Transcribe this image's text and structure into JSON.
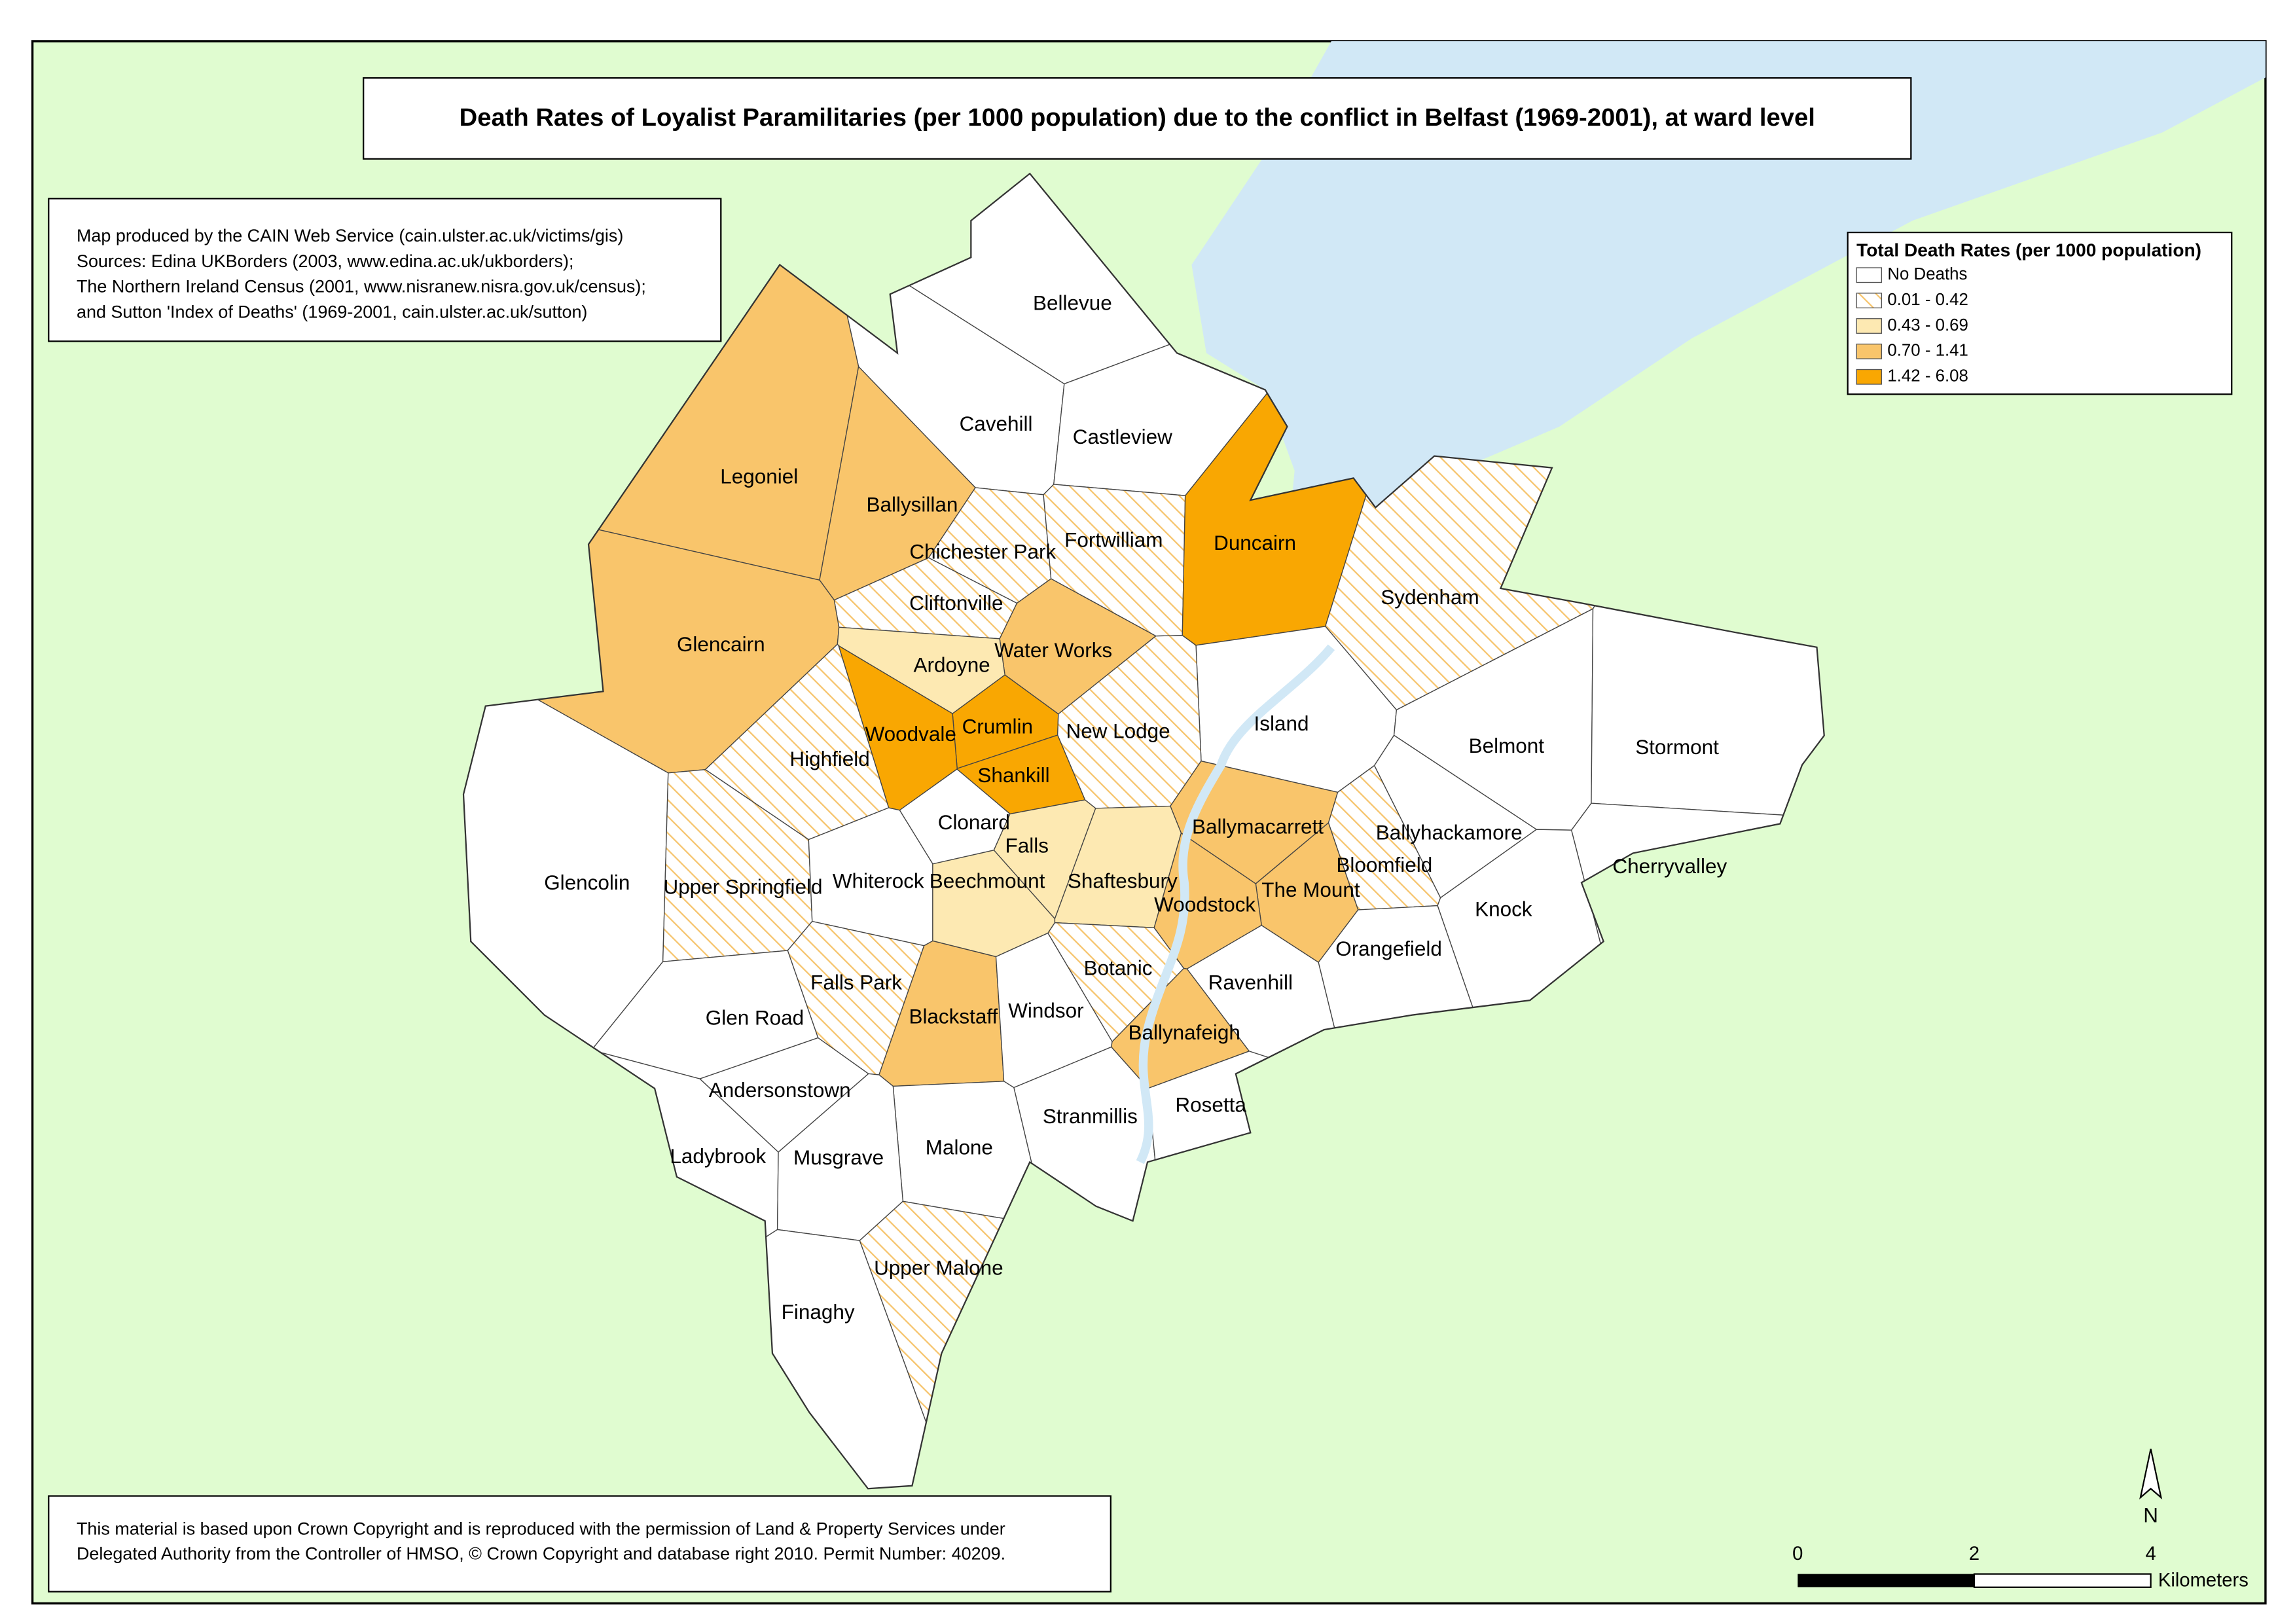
{
  "title": "Death Rates of Loyalist Paramilitaries (per 1000 population) due to the conflict in Belfast (1969-2001), at ward level",
  "source_note": [
    "Map produced by the CAIN Web Service (cain.ulster.ac.uk/victims/gis)",
    "Sources: Edina UKBorders (2003, www.edina.ac.uk/ukborders);",
    "The Northern Ireland Census (2001, www.nisranew.nisra.gov.uk/census);",
    "and Sutton 'Index of Deaths' (1969-2001, cain.ulster.ac.uk/sutton)"
  ],
  "legend": {
    "title": "Total Death Rates (per 1000 population)",
    "classes": [
      {
        "label": "No Deaths",
        "color": "#ffffff"
      },
      {
        "label": "0.01 - 0.42",
        "color": "#f6c46c",
        "hatch": true
      },
      {
        "label": "0.43 - 0.69",
        "color": "#fde9b2"
      },
      {
        "label": "0.70 - 1.41",
        "color": "#f9c56b"
      },
      {
        "label": "1.42 - 6.08",
        "color": "#f9a702"
      }
    ]
  },
  "wards": [
    {
      "name": "Bellevue",
      "class": 0
    },
    {
      "name": "Cavehill",
      "class": 0
    },
    {
      "name": "Castleview",
      "class": 0
    },
    {
      "name": "Legoniel",
      "class": 3
    },
    {
      "name": "Ballysillan",
      "class": 3
    },
    {
      "name": "Chichester Park",
      "class": 1
    },
    {
      "name": "Fortwilliam",
      "class": 1
    },
    {
      "name": "Duncairn",
      "class": 4
    },
    {
      "name": "Cliftonville",
      "class": 1
    },
    {
      "name": "Sydenham",
      "class": 1
    },
    {
      "name": "Glencairn",
      "class": 3
    },
    {
      "name": "Water Works",
      "class": 3
    },
    {
      "name": "Ardoyne",
      "class": 2
    },
    {
      "name": "Island",
      "class": 0
    },
    {
      "name": "Crumlin",
      "class": 4
    },
    {
      "name": "New Lodge",
      "class": 1
    },
    {
      "name": "Woodvale",
      "class": 4
    },
    {
      "name": "Belmont",
      "class": 0
    },
    {
      "name": "Stormont",
      "class": 0
    },
    {
      "name": "Highfield",
      "class": 1
    },
    {
      "name": "Shankill",
      "class": 4
    },
    {
      "name": "Clonard",
      "class": 0
    },
    {
      "name": "Ballymacarrett",
      "class": 3
    },
    {
      "name": "Ballyhackamore",
      "class": 0
    },
    {
      "name": "Falls",
      "class": 2
    },
    {
      "name": "Bloomfield",
      "class": 1
    },
    {
      "name": "Cherryvalley",
      "class": 0
    },
    {
      "name": "Glencolin",
      "class": 0
    },
    {
      "name": "Upper Springfield",
      "class": 1
    },
    {
      "name": "Whiterock",
      "class": 0
    },
    {
      "name": "Beechmount",
      "class": 2
    },
    {
      "name": "Shaftesbury",
      "class": 2
    },
    {
      "name": "The Mount",
      "class": 3
    },
    {
      "name": "Woodstock",
      "class": 3
    },
    {
      "name": "Knock",
      "class": 0
    },
    {
      "name": "Orangefield",
      "class": 0
    },
    {
      "name": "Botanic",
      "class": 1
    },
    {
      "name": "Ravenhill",
      "class": 0
    },
    {
      "name": "Falls Park",
      "class": 1
    },
    {
      "name": "Blackstaff",
      "class": 3
    },
    {
      "name": "Windsor",
      "class": 0
    },
    {
      "name": "Glen Road",
      "class": 0
    },
    {
      "name": "Ballynafeigh",
      "class": 3
    },
    {
      "name": "Andersonstown",
      "class": 0
    },
    {
      "name": "Stranmillis",
      "class": 0
    },
    {
      "name": "Rosetta",
      "class": 0
    },
    {
      "name": "Malone",
      "class": 0
    },
    {
      "name": "Ladybrook",
      "class": 0
    },
    {
      "name": "Musgrave",
      "class": 0
    },
    {
      "name": "Upper Malone",
      "class": 1
    },
    {
      "name": "Finaghy",
      "class": 0
    }
  ],
  "copyright": [
    "This material is based upon Crown Copyright and is reproduced with the permission of Land & Property Services under",
    "Delegated Authority from the Controller of HMSO, © Crown Copyright and database right 2010. Permit Number: 40209."
  ],
  "scale_bar": {
    "ticks": [
      0,
      2,
      4
    ],
    "unit": "Kilometers"
  },
  "north": "N"
}
